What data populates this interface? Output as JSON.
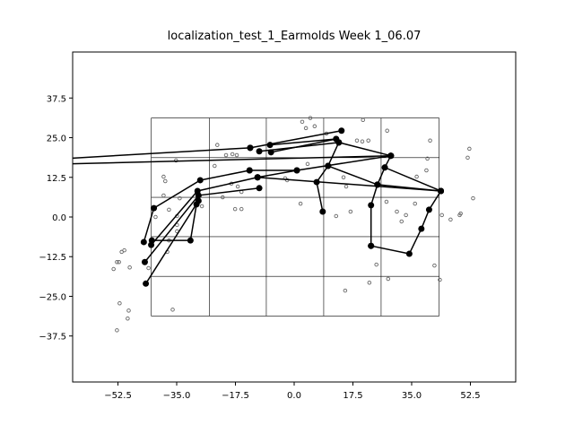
{
  "chart_data": {
    "type": "scatter",
    "title": "localization_test_1_Earmolds Week 1_06.07",
    "xlim": [
      -66,
      66
    ],
    "ylim": [
      -52,
      52
    ],
    "xticks": [
      {
        "value": -52.5,
        "label": "−52.5"
      },
      {
        "value": -35,
        "label": "−35.0"
      },
      {
        "value": -17.5,
        "label": "−17.5"
      },
      {
        "value": 0,
        "label": "0.0"
      },
      17.5,
      {
        "value": 35,
        "label": "35.0"
      },
      52.5
    ],
    "yticks": [
      37.5,
      {
        "value": 25,
        "label": "25.0"
      },
      12.5,
      {
        "value": 0,
        "label": "0.0"
      },
      {
        "value": -12.5,
        "label": "−12.5"
      },
      {
        "value": -25,
        "label": "−25.0"
      },
      {
        "value": -37.5,
        "label": "−37.5"
      }
    ],
    "overlay": {
      "x": [
        -42.6,
        -25.3,
        -8.3,
        8.8,
        25.9,
        43.2
      ],
      "y": [
        -31.2,
        -18.7,
        -6.2,
        6.2,
        18.7,
        31.2
      ]
    },
    "series": [
      {
        "color": "#666666",
        "x": [
          4.8,
          2.4,
          6.1,
          3.5,
          20.5,
          27.7,
          9.6,
          -22.9,
          -20.3,
          -18.4,
          -17.1,
          -35.2,
          -23.7,
          18.7,
          20.3,
          22.1,
          40.5,
          52.2,
          51.7,
          39.7,
          39.4,
          36.5,
          -38.9,
          -38.4,
          14.7,
          -2.1,
          -18.7,
          -16.8,
          -15.7,
          -21.3,
          -38.9,
          -34.1,
          53.3,
          1.9,
          15.5,
          27.5,
          36.0,
          -17.6,
          -15.7,
          -37.3,
          -27.5,
          -34.9,
          30.6,
          16.8,
          12.5,
          33.3,
          32.0,
          44.0,
          46.6,
          49.3,
          49.6,
          -34.9,
          -34.9,
          -37.3,
          -37.8,
          -50.6,
          -51.4,
          -52.2,
          -52.8,
          -49.0,
          -53.8,
          -43.4,
          24.5,
          41.8,
          28.0,
          22.4,
          43.4,
          15.2,
          -52.0,
          -49.3,
          -36.2,
          -49.6,
          -52.8,
          -41.3,
          4.0,
          -2.7
        ],
        "y": [
          31.2,
          30.0,
          28.6,
          28.0,
          30.6,
          27.2,
          26.3,
          22.7,
          19.5,
          19.8,
          19.5,
          17.8,
          16.1,
          24.1,
          23.8,
          24.1,
          24.1,
          21.5,
          18.7,
          18.4,
          14.7,
          12.7,
          12.7,
          11.3,
          12.5,
          11.6,
          10.5,
          9.6,
          7.9,
          6.2,
          6.8,
          5.9,
          5.9,
          4.2,
          9.6,
          4.8,
          4.2,
          2.5,
          2.5,
          2.3,
          3.4,
          0.3,
          1.7,
          1.7,
          0.3,
          0.6,
          -1.4,
          0.6,
          -0.8,
          0.6,
          1.1,
          -2.5,
          -4.5,
          -7.4,
          -11.0,
          -10.5,
          -11.0,
          -14.2,
          -14.2,
          -15.9,
          -16.4,
          -16.1,
          -15.0,
          -15.3,
          -19.5,
          -20.7,
          -19.8,
          -23.2,
          -27.2,
          -29.5,
          -29.2,
          -32.0,
          -35.7,
          0.0,
          16.7,
          12.2
        ]
      }
    ],
    "lines": {
      "color": "#000000",
      "segments": [
        {
          "x": [
            -80,
            -13.1
          ],
          "y": [
            17.7,
            21.8
          ]
        },
        {
          "x": [
            -80,
            28.8
          ],
          "y": [
            16.4,
            19.3
          ]
        },
        {
          "x": [
            -13.1,
            14.1
          ],
          "y": [
            21.8,
            27.2
          ]
        },
        {
          "x": [
            -7.2,
            12.5
          ],
          "y": [
            22.7,
            24.6
          ]
        },
        {
          "x": [
            -10.4,
            13.3
          ],
          "y": [
            20.7,
            23.5
          ]
        },
        {
          "x": [
            -6.9,
            12.5
          ],
          "y": [
            20.4,
            24.6
          ]
        },
        {
          "x": [
            13.3,
            28.8
          ],
          "y": [
            23.5,
            19.3
          ]
        },
        {
          "x": [
            -13.3,
            0.8,
            28.8
          ],
          "y": [
            14.7,
            14.7,
            19.3
          ]
        },
        {
          "x": [
            28.8,
            27.0,
            43.7
          ],
          "y": [
            19.3,
            15.6,
            8.2
          ]
        },
        {
          "x": [
            13.3,
            10.1,
            6.7,
            8.5
          ],
          "y": [
            23.5,
            16.1,
            11.0,
            1.7
          ]
        },
        {
          "x": [
            10.1,
            24.8,
            43.7
          ],
          "y": [
            16.1,
            10.2,
            8.2
          ]
        },
        {
          "x": [
            -10.9,
            43.7
          ],
          "y": [
            12.5,
            8.2
          ]
        },
        {
          "x": [
            27.0,
            24.8,
            22.9,
            22.9
          ],
          "y": [
            15.6,
            10.2,
            3.7,
            -9.1
          ]
        },
        {
          "x": [
            43.7,
            40.2,
            37.9,
            34.3,
            22.9
          ],
          "y": [
            8.2,
            2.3,
            -3.7,
            -11.6,
            -9.1
          ]
        },
        {
          "x": [
            -13.3,
            -28.0,
            -41.8,
            -44.8
          ],
          "y": [
            14.7,
            11.6,
            2.8,
            -7.9
          ]
        },
        {
          "x": [
            -10.9,
            -28.8,
            -42.6
          ],
          "y": [
            12.5,
            8.2,
            -8.8
          ]
        },
        {
          "x": [
            -10.4,
            -28.5,
            -44.5
          ],
          "y": [
            9.1,
            6.8,
            -14.2
          ]
        },
        {
          "x": [
            -28.5,
            -44.2
          ],
          "y": [
            5.1,
            -21.0
          ]
        },
        {
          "x": [
            -29.1,
            -30.9,
            -42.4
          ],
          "y": [
            4.0,
            -7.4,
            -7.4
          ]
        },
        {
          "x": [
            -10.9,
            0.8
          ],
          "y": [
            12.5,
            14.7
          ]
        }
      ]
    }
  }
}
